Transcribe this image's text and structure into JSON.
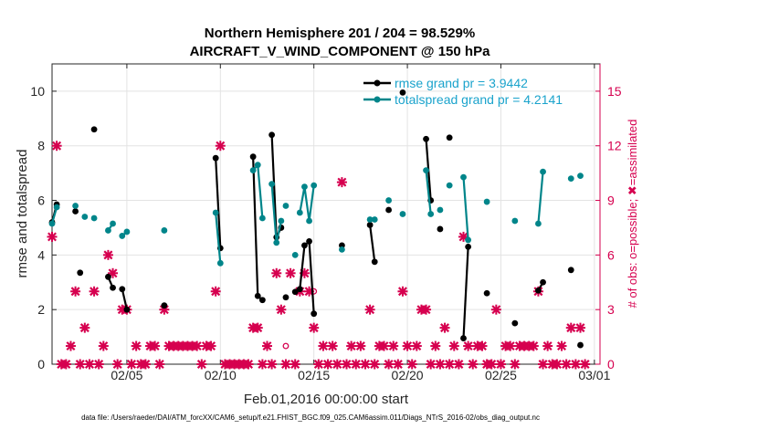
{
  "chart_data": {
    "type": "scatter",
    "title_line1": "Northern Hemisphere 201 / 204 = 98.529%",
    "title_line2": "AIRCRAFT_V_WIND_COMPONENT @ 150 hPa",
    "xlabel": "Feb.01,2016 00:00:00 start",
    "ylabel": "rmse and totalspread",
    "ylabel_right": "# of obs: o=possible; ✖=assimilated",
    "xlim": [
      1,
      30.3
    ],
    "ylim": [
      0,
      11
    ],
    "ylim_right": [
      0,
      16.5
    ],
    "x_ticks": [
      5,
      10,
      15,
      20,
      25,
      30
    ],
    "x_tick_labels": [
      "02/05",
      "02/10",
      "02/15",
      "02/20",
      "02/25",
      "03/01"
    ],
    "y_ticks": [
      0,
      2,
      4,
      6,
      8,
      10
    ],
    "y_tick_labels": [
      "0",
      "2",
      "4",
      "6",
      "8",
      "10"
    ],
    "y_right_ticks": [
      0,
      3,
      6,
      9,
      12,
      15
    ],
    "y_right_tick_labels": [
      "0",
      "3",
      "6",
      "9",
      "12",
      "15"
    ],
    "footer": "data file: /Users/raeder/DAI/ATM_forcXX/CAM6_setup/f.e21.FHIST_BGC.f09_025.CAM6assim.011/Diags_NTrS_2016-02/obs_diag_output.nc",
    "legend": [
      {
        "label": "rmse grand pr = 3.9442",
        "color": "#000000"
      },
      {
        "label": "totalspread grand pr = 4.2141",
        "color": "#00858a"
      }
    ],
    "series": [
      {
        "name": "rmse",
        "color": "#000000",
        "segments": [
          [
            [
              1.0,
              5.2
            ],
            [
              1.25,
              5.85
            ]
          ],
          [
            [
              2.25,
              5.6
            ]
          ],
          [
            [
              2.5,
              3.35
            ]
          ],
          [
            [
              3.25,
              8.6
            ]
          ],
          [
            [
              4.0,
              3.2
            ],
            [
              4.25,
              2.8
            ]
          ],
          [
            [
              4.75,
              2.75
            ],
            [
              5.0,
              2.0
            ]
          ],
          [
            [
              7.0,
              2.15
            ]
          ],
          [
            [
              9.75,
              7.55
            ],
            [
              10.0,
              4.25
            ]
          ],
          [
            [
              11.75,
              7.6
            ],
            [
              12.0,
              2.5
            ],
            [
              12.25,
              2.35
            ]
          ],
          [
            [
              12.75,
              8.4
            ],
            [
              13.0,
              4.65
            ],
            [
              13.25,
              5.0
            ]
          ],
          [
            [
              13.5,
              2.45
            ]
          ],
          [
            [
              14.0,
              2.65
            ]
          ],
          [
            [
              14.25,
              2.75
            ],
            [
              14.5,
              4.35
            ],
            [
              14.75,
              4.5
            ],
            [
              15.0,
              1.85
            ]
          ],
          [
            [
              16.5,
              4.35
            ]
          ],
          [
            [
              18.0,
              5.1
            ],
            [
              18.25,
              3.75
            ]
          ],
          [
            [
              19.0,
              5.65
            ]
          ],
          [
            [
              19.75,
              9.95
            ]
          ],
          [
            [
              21.0,
              8.25
            ],
            [
              21.25,
              6.0
            ]
          ],
          [
            [
              21.75,
              4.95
            ]
          ],
          [
            [
              22.25,
              8.3
            ]
          ],
          [
            [
              23.0,
              0.95
            ],
            [
              23.25,
              4.3
            ]
          ],
          [
            [
              24.25,
              2.6
            ]
          ],
          [
            [
              25.75,
              1.5
            ]
          ],
          [
            [
              27.0,
              2.7
            ],
            [
              27.25,
              3.0
            ]
          ],
          [
            [
              28.75,
              3.45
            ]
          ],
          [
            [
              29.25,
              0.7
            ]
          ]
        ]
      },
      {
        "name": "totalspread",
        "color": "#00858a",
        "segments": [
          [
            [
              1.0,
              5.15
            ],
            [
              1.25,
              5.75
            ]
          ],
          [
            [
              2.25,
              5.8
            ]
          ],
          [
            [
              2.75,
              5.4
            ]
          ],
          [
            [
              3.25,
              5.35
            ]
          ],
          [
            [
              4.0,
              4.9
            ],
            [
              4.25,
              5.15
            ]
          ],
          [
            [
              4.75,
              4.7
            ],
            [
              5.0,
              4.85
            ]
          ],
          [
            [
              7.0,
              4.9
            ]
          ],
          [
            [
              9.75,
              5.55
            ],
            [
              10.0,
              3.7
            ]
          ],
          [
            [
              11.75,
              7.1
            ],
            [
              12.0,
              7.3
            ],
            [
              12.25,
              5.35
            ]
          ],
          [
            [
              12.75,
              6.6
            ],
            [
              13.0,
              4.45
            ],
            [
              13.25,
              5.25
            ]
          ],
          [
            [
              13.5,
              5.8
            ]
          ],
          [
            [
              14.0,
              4.0
            ]
          ],
          [
            [
              14.25,
              5.55
            ],
            [
              14.5,
              6.5
            ],
            [
              14.75,
              5.25
            ],
            [
              15.0,
              6.55
            ]
          ],
          [
            [
              16.5,
              4.2
            ]
          ],
          [
            [
              18.0,
              5.3
            ],
            [
              18.25,
              5.3
            ]
          ],
          [
            [
              19.0,
              6.0
            ]
          ],
          [
            [
              19.75,
              5.5
            ]
          ],
          [
            [
              21.0,
              7.1
            ],
            [
              21.25,
              5.5
            ]
          ],
          [
            [
              21.75,
              5.65
            ]
          ],
          [
            [
              22.25,
              6.55
            ]
          ],
          [
            [
              23.0,
              6.85
            ],
            [
              23.25,
              4.55
            ]
          ],
          [
            [
              24.25,
              5.95
            ]
          ],
          [
            [
              25.75,
              5.25
            ]
          ],
          [
            [
              27.0,
              5.15
            ],
            [
              27.25,
              7.05
            ]
          ],
          [
            [
              28.75,
              6.8
            ]
          ],
          [
            [
              29.25,
              6.9
            ]
          ]
        ]
      }
    ],
    "obs_possible": {
      "color": "#d6004f",
      "points": [
        [
          13.5,
          1.0
        ],
        [
          15.0,
          4.0
        ]
      ]
    },
    "obs_assimilated": {
      "color": "#d6004f",
      "points": [
        [
          1.0,
          7
        ],
        [
          1.25,
          12
        ],
        [
          1.5,
          0
        ],
        [
          1.75,
          0
        ],
        [
          2.0,
          1
        ],
        [
          2.25,
          4
        ],
        [
          2.5,
          0
        ],
        [
          2.75,
          2
        ],
        [
          3.0,
          0
        ],
        [
          3.25,
          4
        ],
        [
          3.5,
          0
        ],
        [
          3.75,
          1
        ],
        [
          4.0,
          6
        ],
        [
          4.25,
          5
        ],
        [
          4.5,
          0
        ],
        [
          4.75,
          3
        ],
        [
          5.0,
          3
        ],
        [
          5.25,
          0
        ],
        [
          5.5,
          1
        ],
        [
          5.75,
          0
        ],
        [
          6.0,
          0
        ],
        [
          6.25,
          1
        ],
        [
          6.5,
          1
        ],
        [
          6.75,
          0
        ],
        [
          7.0,
          3
        ],
        [
          7.25,
          1
        ],
        [
          7.5,
          1
        ],
        [
          7.75,
          1
        ],
        [
          8.0,
          1
        ],
        [
          8.25,
          1
        ],
        [
          8.5,
          1
        ],
        [
          8.75,
          1
        ],
        [
          9.0,
          0
        ],
        [
          9.25,
          1
        ],
        [
          9.5,
          1
        ],
        [
          9.75,
          4
        ],
        [
          10.0,
          12
        ],
        [
          10.25,
          0
        ],
        [
          10.5,
          0
        ],
        [
          10.75,
          0
        ],
        [
          11.0,
          0
        ],
        [
          11.25,
          0
        ],
        [
          11.5,
          0
        ],
        [
          11.75,
          2
        ],
        [
          12.0,
          2
        ],
        [
          12.25,
          0
        ],
        [
          12.5,
          1
        ],
        [
          12.75,
          0
        ],
        [
          13.0,
          5
        ],
        [
          13.25,
          3
        ],
        [
          13.5,
          0
        ],
        [
          13.75,
          5
        ],
        [
          14.0,
          0
        ],
        [
          14.25,
          4
        ],
        [
          14.5,
          5
        ],
        [
          14.75,
          4
        ],
        [
          15.0,
          2
        ],
        [
          15.25,
          0
        ],
        [
          15.5,
          1
        ],
        [
          15.75,
          0
        ],
        [
          16.0,
          1
        ],
        [
          16.25,
          0
        ],
        [
          16.5,
          10
        ],
        [
          16.75,
          0
        ],
        [
          17.0,
          1
        ],
        [
          17.25,
          0
        ],
        [
          17.5,
          1
        ],
        [
          17.75,
          0
        ],
        [
          18.0,
          3
        ],
        [
          18.25,
          0
        ],
        [
          18.5,
          1
        ],
        [
          18.75,
          1
        ],
        [
          19.0,
          0
        ],
        [
          19.25,
          1
        ],
        [
          19.5,
          0
        ],
        [
          19.75,
          4
        ],
        [
          20.0,
          1
        ],
        [
          20.25,
          0
        ],
        [
          20.5,
          1
        ],
        [
          20.75,
          3
        ],
        [
          21.0,
          3
        ],
        [
          21.25,
          0
        ],
        [
          21.5,
          1
        ],
        [
          21.75,
          0
        ],
        [
          22.0,
          2
        ],
        [
          22.25,
          0
        ],
        [
          22.5,
          1
        ],
        [
          22.75,
          0
        ],
        [
          23.0,
          7
        ],
        [
          23.25,
          1
        ],
        [
          23.5,
          0
        ],
        [
          23.75,
          1
        ],
        [
          24.0,
          1
        ],
        [
          24.25,
          0
        ],
        [
          24.5,
          0
        ],
        [
          24.75,
          3
        ],
        [
          25.0,
          0
        ],
        [
          25.25,
          1
        ],
        [
          25.5,
          1
        ],
        [
          25.75,
          0
        ],
        [
          26.0,
          1
        ],
        [
          26.25,
          1
        ],
        [
          26.5,
          1
        ],
        [
          26.75,
          1
        ],
        [
          27.0,
          4
        ],
        [
          27.25,
          0
        ],
        [
          27.5,
          1
        ],
        [
          27.75,
          0
        ],
        [
          28.0,
          0
        ],
        [
          28.25,
          1
        ],
        [
          28.5,
          0
        ],
        [
          28.75,
          2
        ],
        [
          29.0,
          0
        ],
        [
          29.25,
          2
        ],
        [
          29.5,
          0
        ]
      ]
    }
  }
}
